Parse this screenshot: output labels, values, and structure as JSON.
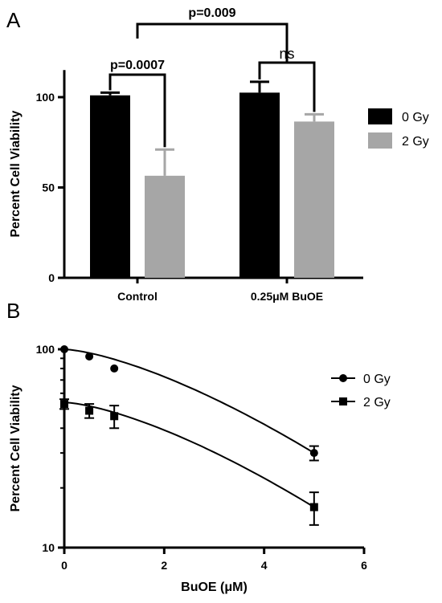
{
  "chart_data": [
    {
      "panel": "A",
      "type": "bar",
      "categories": [
        "Control",
        "0.25μM BuOE"
      ],
      "series": [
        {
          "name": "0 Gy",
          "values": [
            101,
            102.5
          ],
          "errors": [
            1.5,
            6
          ],
          "color": "#000000"
        },
        {
          "name": "2 Gy",
          "values": [
            56.5,
            86.5
          ],
          "errors": [
            14.5,
            4
          ],
          "color": "#a6a6a6"
        }
      ],
      "ylabel": "Percent Cell Viability",
      "yticks": [
        0,
        50,
        100
      ],
      "ylim": [
        0,
        115
      ],
      "legend_position": "right",
      "annotations": [
        "p=0.0007",
        "ns",
        "p=0.009"
      ]
    },
    {
      "panel": "B",
      "type": "scatter",
      "xlabel": "BuOE (μM)",
      "ylabel": "Percent Cell Viability",
      "xlim": [
        0,
        6
      ],
      "ylim": [
        10,
        100
      ],
      "yscale": "log",
      "xticks": [
        0,
        2,
        4,
        6
      ],
      "yticks": [
        10,
        100
      ],
      "legend_position": "right",
      "series": [
        {
          "name": "0 Gy",
          "marker": "circle",
          "x": [
            0,
            0.5,
            1,
            5
          ],
          "y": [
            100,
            92,
            80,
            30
          ],
          "errors": [
            0,
            0,
            0,
            2.5
          ],
          "fit": [
            100,
            30
          ]
        },
        {
          "name": "2 Gy",
          "marker": "square",
          "x": [
            0,
            0.5,
            1,
            5
          ],
          "y": [
            53,
            49,
            46,
            16
          ],
          "errors": [
            3,
            4,
            6,
            3
          ],
          "fit": [
            54,
            16
          ]
        }
      ]
    }
  ]
}
